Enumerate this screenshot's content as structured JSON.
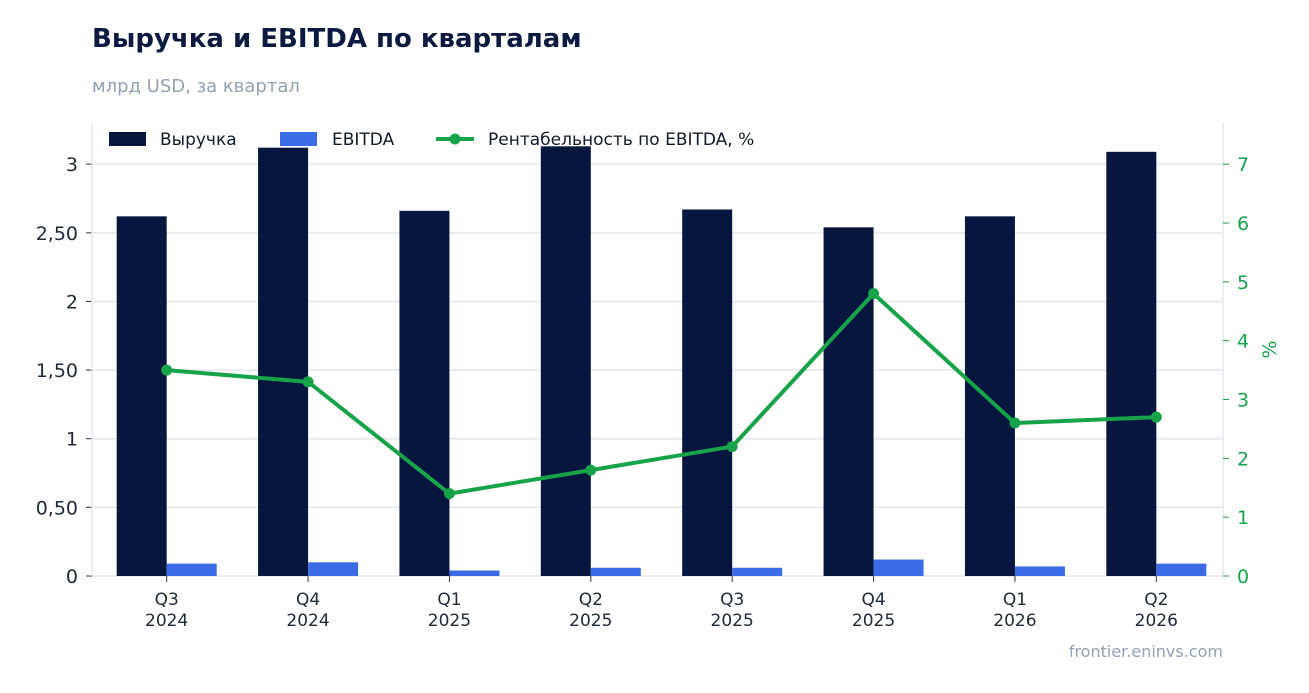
{
  "header": {
    "title": "Выручка и EBITDA по кварталам",
    "subtitle": "млрд USD, за квартал"
  },
  "footer": {
    "source": "frontier.eninvs.com"
  },
  "chart_data": {
    "type": "bar",
    "categories": [
      [
        "Q3",
        "2024"
      ],
      [
        "Q4",
        "2024"
      ],
      [
        "Q1",
        "2025"
      ],
      [
        "Q2",
        "2025"
      ],
      [
        "Q3",
        "2025"
      ],
      [
        "Q4",
        "2025"
      ],
      [
        "Q1",
        "2026"
      ],
      [
        "Q2",
        "2026"
      ]
    ],
    "series": [
      {
        "name": "Выручка",
        "kind": "bar",
        "axis": "left",
        "color": "#06163f",
        "values": [
          2.62,
          3.12,
          2.66,
          3.13,
          2.67,
          2.54,
          2.62,
          3.09
        ]
      },
      {
        "name": "EBITDA",
        "kind": "bar",
        "axis": "left",
        "color": "#3b6ce6",
        "values": [
          0.09,
          0.1,
          0.04,
          0.06,
          0.06,
          0.12,
          0.07,
          0.09
        ]
      },
      {
        "name": "Рентабельность по EBITDA, %",
        "kind": "line",
        "axis": "right",
        "color": "#16a34a",
        "values": [
          3.5,
          3.3,
          1.4,
          1.8,
          2.2,
          4.8,
          2.6,
          2.7
        ]
      }
    ],
    "left_axis": {
      "ylim": [
        0,
        3.3
      ],
      "ticks": [
        0,
        0.5,
        1,
        1.5,
        2,
        2.5,
        3
      ],
      "tick_labels": [
        "0",
        "0,50",
        "1",
        "1,50",
        "2",
        "2,50",
        "3"
      ]
    },
    "right_axis": {
      "label": "%",
      "ylim": [
        0,
        7.7
      ],
      "ticks": [
        0,
        1,
        2,
        3,
        4,
        5,
        6,
        7
      ],
      "tick_labels": [
        "0",
        "1",
        "2",
        "3",
        "4",
        "5",
        "6",
        "7"
      ],
      "color": "#16a34a"
    },
    "grid": true,
    "legend": {
      "placement": "top-left"
    }
  }
}
